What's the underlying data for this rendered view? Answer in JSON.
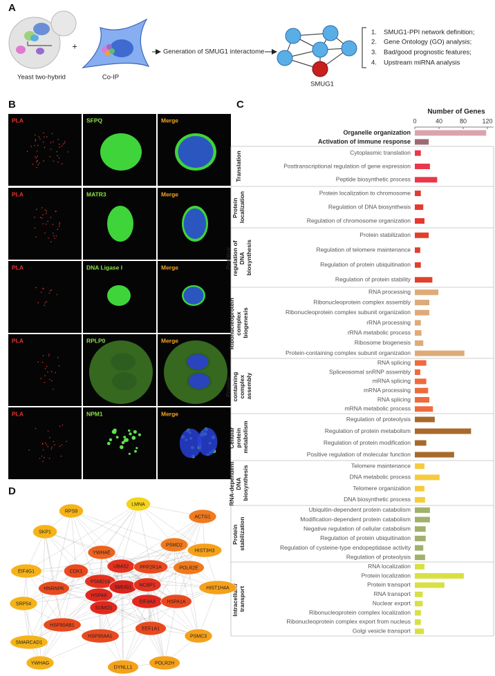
{
  "panel_labels": [
    "A",
    "B",
    "C",
    "D"
  ],
  "workflow": {
    "steps": [
      "Yeast two-hybrid",
      "Co-IP"
    ],
    "plus": "+",
    "process": "Generation of SMUG1 interactome",
    "hub": "SMUG1",
    "analyses": [
      {
        "number": "1.",
        "text": "SMUG1-PPI network definition;"
      },
      {
        "number": "2.",
        "text": "Gene Ontology (GO) analysis;"
      },
      {
        "number": "3.",
        "text": "Bad/good prognostic features;"
      },
      {
        "number": "4.",
        "text": "Upstream miRNA analysis"
      }
    ]
  },
  "microscopy": {
    "rows": [
      {
        "probe": "PLA",
        "target": "SFPQ",
        "merge": "Merge"
      },
      {
        "probe": "PLA",
        "target": "MATR3",
        "merge": "Merge"
      },
      {
        "probe": "PLA",
        "target": "DNA Ligase I",
        "merge": "Merge"
      },
      {
        "probe": "PLA",
        "target": "RPLP0",
        "merge": "Merge"
      },
      {
        "probe": "PLA",
        "target": "NPM1",
        "merge": "Merge"
      }
    ]
  },
  "chart_data": {
    "type": "barh",
    "title": "Number of Genes",
    "xlim": [
      0,
      130
    ],
    "xticks": [
      0,
      40,
      80,
      120
    ],
    "groups": [
      {
        "color": "#dba3ae",
        "bold": true,
        "categories": [
          "Organelle organization"
        ],
        "values": [
          118
        ]
      },
      {
        "color": "#9c6b72",
        "bold": true,
        "categories": [
          "Activation of immune response"
        ],
        "values": [
          23
        ]
      },
      {
        "name": "Translation",
        "color": "#e8384a",
        "categories": [
          "Cytoplasmic translation",
          "Posttranscriptional regulation of gene expression",
          "Peptide biosynthetic process"
        ],
        "values": [
          10,
          25,
          37
        ]
      },
      {
        "name": "Protein localization",
        "color": "#e53a30",
        "categories": [
          "Protein localization to chromosome",
          "Regulation of DNA biosynthesis",
          "Regulation of chromosome organization"
        ],
        "values": [
          10,
          14,
          16
        ]
      },
      {
        "name": "Positive regulation of DNA biosynthesis",
        "color": "#e0402a",
        "categories": [
          "Protein stabilization",
          "Regulation of telomere maintenance",
          "Regulation of protein ubiquitination",
          "Regulation of protein stability"
        ],
        "values": [
          23,
          9,
          10,
          29
        ]
      },
      {
        "name": "Ribonucleoprotein complex biogenesis",
        "color": "#deab78",
        "categories": [
          "RNA processing",
          "Ribonucleoprotein complex assembly",
          "Ribonucleoprotein complex subunit organization",
          "rRNA processing",
          "rRNA metabolic process",
          "Ribosome biogenesis",
          "Protein-containing complex subunit organization"
        ],
        "values": [
          39,
          24,
          24,
          10,
          11,
          14,
          82
        ]
      },
      {
        "name": "Protein containing complex assembly",
        "color": "#ef6a3c",
        "categories": [
          "RNA splicing",
          "Spliceosomal snRNP assembly",
          "mRNA splicing",
          "mRNA processing",
          "RNA splicing",
          "mRNA metabolic process"
        ],
        "values": [
          19,
          9,
          19,
          22,
          24,
          30
        ]
      },
      {
        "name": "Cellular protein metabolism",
        "color": "#a86a2c",
        "categories": [
          "Regulation of proteolysis",
          "Regulation of protein metabolism",
          "Regulation of protein modification",
          "Positive regulation of molecular function"
        ],
        "values": [
          33,
          93,
          19,
          65
        ]
      },
      {
        "name": "RNA-dependent DNA biosynthesis",
        "color": "#f6cb3c",
        "categories": [
          "Telomere maintenance",
          "DNA metabolic process",
          "Telomere organization",
          "DNA biosynthetic process"
        ],
        "values": [
          16,
          41,
          16,
          17
        ]
      },
      {
        "name": "Protein stabilization",
        "color": "#a2b06e",
        "categories": [
          "Ubiquitin-dependent protein catabolism",
          "Modification-dependent protein catabolism",
          "Negative regulation of cellular catabolism",
          "Regulation of protein ubiquitination",
          "Regulation of cysteine-type endopeptidase activity",
          "Regulation of proteolysis"
        ],
        "values": [
          25,
          25,
          18,
          18,
          14,
          17
        ]
      },
      {
        "name": "Intracellular transport",
        "color": "#d8e044",
        "categories": [
          "RNA localization",
          "Protein localization",
          "Protein transport",
          "RNA transport",
          "Nuclear export",
          "Ribonucleoprotein complex localization",
          "Ribonucleoprotein complex export from nucleus",
          "Golgi vesicle transport"
        ],
        "values": [
          16,
          81,
          49,
          13,
          13,
          10,
          10,
          15
        ]
      }
    ]
  },
  "network": {
    "nodes": [
      {
        "label": "RPS9",
        "color": "#f5b31a"
      },
      {
        "label": "LMNA",
        "color": "#f4d41c"
      },
      {
        "label": "SKP1",
        "color": "#f5b31a"
      },
      {
        "label": "ACTG1",
        "color": "#f07a1e"
      },
      {
        "label": "YWHAE",
        "color": "#ec621e"
      },
      {
        "label": "PSMD2",
        "color": "#f07a1e"
      },
      {
        "label": "HIST3H3",
        "color": "#f5a11a"
      },
      {
        "label": "CDK1",
        "color": "#e84a1f"
      },
      {
        "label": "UBA52",
        "color": "#e3321f"
      },
      {
        "label": "PPP2R1A",
        "color": "#e84a1f"
      },
      {
        "label": "POLR2E",
        "color": "#f07a1e"
      },
      {
        "label": "EIF4G1",
        "color": "#f5b31a"
      },
      {
        "label": "PSMD14",
        "color": "#e3321f"
      },
      {
        "label": "SMUG1",
        "color": "#d9231d"
      },
      {
        "label": "NCBP1",
        "color": "#e3321f"
      },
      {
        "label": "HNRNPK",
        "color": "#e84a1f"
      },
      {
        "label": "HSPA8",
        "color": "#e0291e"
      },
      {
        "label": "HIST1H4A",
        "color": "#f5a11a"
      },
      {
        "label": "EIF4A3",
        "color": "#e0291e"
      },
      {
        "label": "HSPA1A",
        "color": "#e84a1f"
      },
      {
        "label": "SUMO1",
        "color": "#e0291e"
      },
      {
        "label": "SRP54",
        "color": "#f5b31a"
      },
      {
        "label": "HSP90AB1",
        "color": "#e84a1f"
      },
      {
        "label": "HSP90AA1",
        "color": "#e84a1f"
      },
      {
        "label": "EEF1A1",
        "color": "#e84a1f"
      },
      {
        "label": "PSMC3",
        "color": "#f5a11a"
      },
      {
        "label": "SMARCAD1",
        "color": "#f5b31a"
      },
      {
        "label": "YWHAG",
        "color": "#f5b31a"
      },
      {
        "label": "DYNLL1",
        "color": "#f5a11a"
      },
      {
        "label": "POLR2H",
        "color": "#f5a11a"
      }
    ]
  }
}
